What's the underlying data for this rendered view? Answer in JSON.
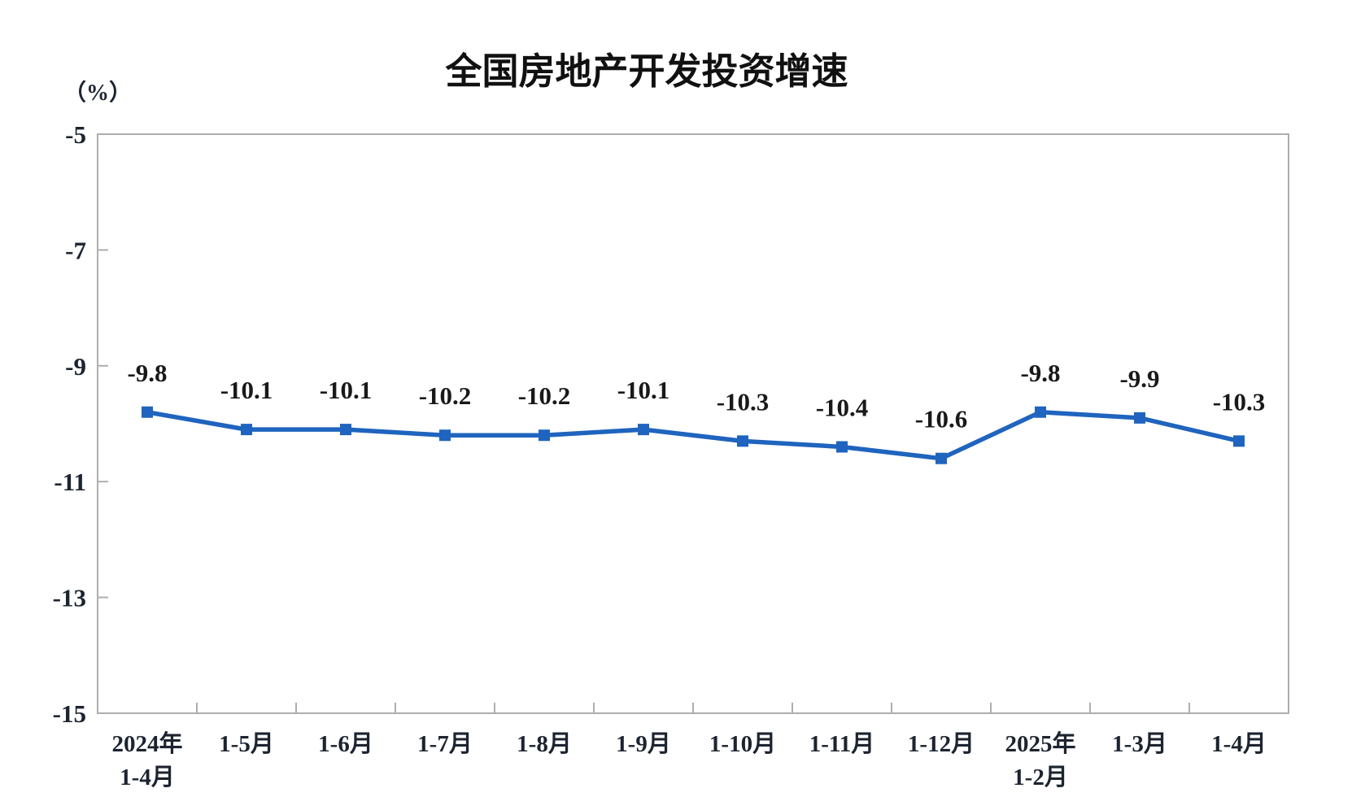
{
  "chart_data": {
    "type": "line",
    "title": "全国房地产开发投资增速",
    "unit_label": "（%）",
    "categories": [
      [
        "2024年",
        "1-4月"
      ],
      [
        "1-5月"
      ],
      [
        "1-6月"
      ],
      [
        "1-7月"
      ],
      [
        "1-8月"
      ],
      [
        "1-9月"
      ],
      [
        "1-10月"
      ],
      [
        "1-11月"
      ],
      [
        "1-12月"
      ],
      [
        "2025年",
        "1-2月"
      ],
      [
        "1-3月"
      ],
      [
        "1-4月"
      ]
    ],
    "values": [
      -9.8,
      -10.1,
      -10.1,
      -10.2,
      -10.2,
      -10.1,
      -10.3,
      -10.4,
      -10.6,
      -9.8,
      -9.9,
      -10.3
    ],
    "data_labels": [
      "-9.8",
      "-10.1",
      "-10.1",
      "-10.2",
      "-10.2",
      "-10.1",
      "-10.3",
      "-10.4",
      "-10.6",
      "-9.8",
      "-9.9",
      "-10.3"
    ],
    "y_ticks": [
      -5,
      -7,
      -9,
      -11,
      -13,
      -15
    ],
    "ylim": [
      -15,
      -5
    ],
    "grid": false,
    "legend": false,
    "marker": "square",
    "series_color": "#1F64BE",
    "axis_color": "#AEAEAE",
    "plot_background": "#FFFFFF"
  }
}
